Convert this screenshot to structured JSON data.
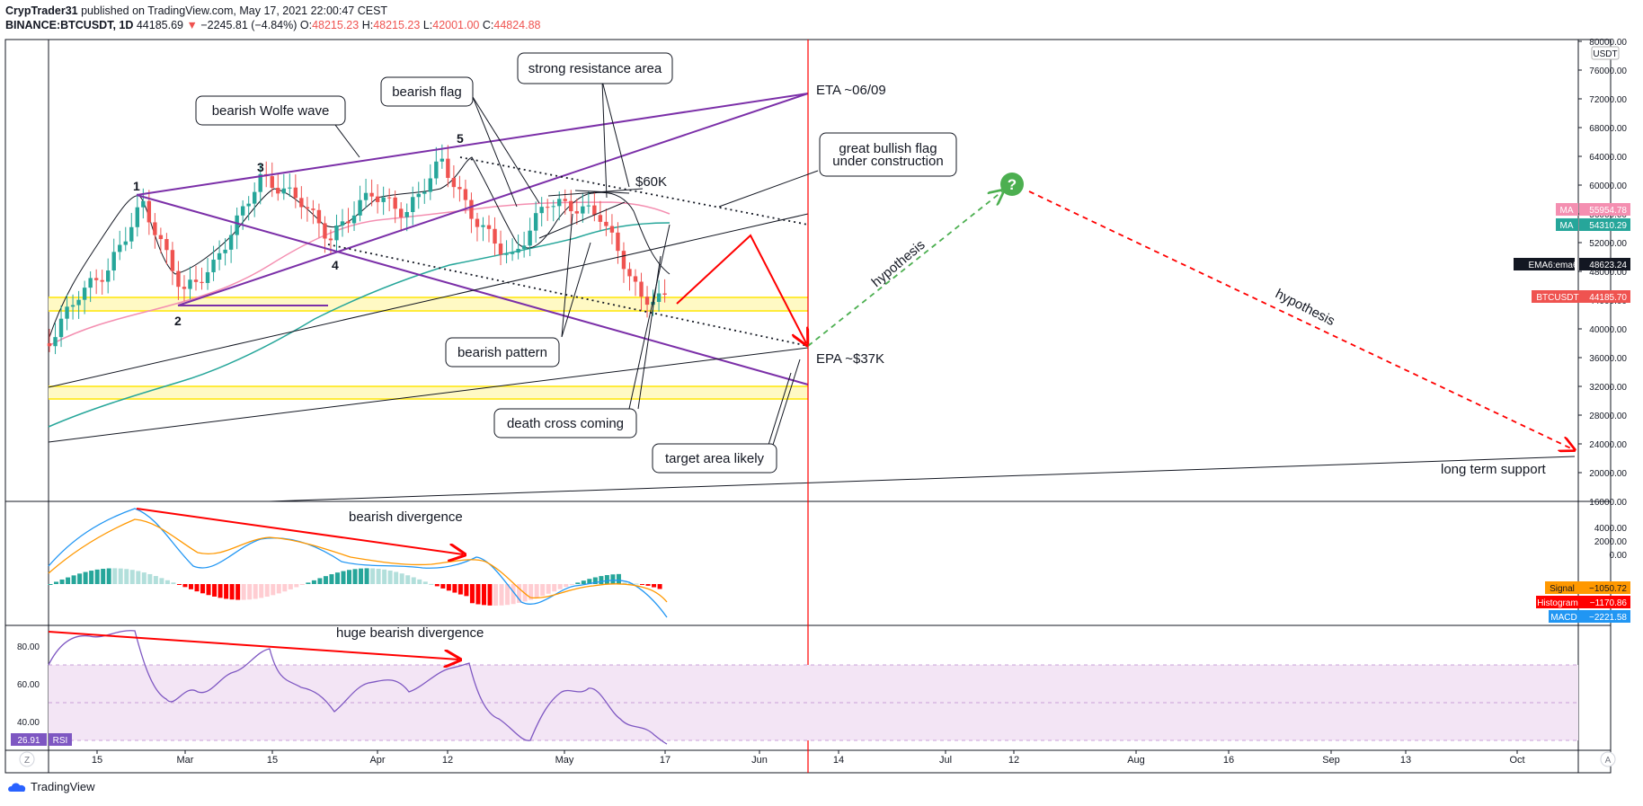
{
  "header": {
    "publisher": "CrypTrader31",
    "published_text": "published on TradingView.com, May 17, 2021 22:00:47 CEST",
    "symbol": "BINANCE:BTCUSDT, 1D",
    "price": "44185.69",
    "change": "−2245.81 (−4.84%)",
    "o_label": "O:",
    "o": "48215.23",
    "h_label": "H:",
    "h": "48215.23",
    "l_label": "L:",
    "l": "42001.00",
    "c_label": "C:",
    "c": "44824.88"
  },
  "branding": {
    "name": "TradingView"
  },
  "colors": {
    "up": "#26a69a",
    "down": "#ef5350",
    "purple": "#7b2fa8",
    "ma_pink": "#f48fb1",
    "ma_teal": "#26a69a",
    "yellow": "#fff59d",
    "rsi_line": "#7e57c2",
    "rsi_fill": "#f3e5f5",
    "macd_line": "#2196f3",
    "signal_line": "#ff9800",
    "red": "#ff0000",
    "green_dash": "#4caf50"
  },
  "chart_data": [
    {
      "type": "candlestick",
      "title": "BTCUSDT 1D",
      "price_unit": "USDT",
      "ylim": [
        16000,
        80000
      ],
      "y_ticks": [
        "80000.00",
        "76000.00",
        "72000.00",
        "68000.00",
        "64000.00",
        "60000.00",
        "56000.00",
        "52000.00",
        "48000.00",
        "44000.00",
        "40000.00",
        "36000.00",
        "32000.00",
        "28000.00",
        "24000.00",
        "20000.00",
        "16000.00"
      ],
      "x_ticks": [
        "15",
        "Mar",
        "15",
        "Apr",
        "12",
        "May",
        "17",
        "Jun",
        "14",
        "Jul",
        "12",
        "Aug",
        "16",
        "Sep",
        "13",
        "Oct"
      ],
      "approx_close_series": [
        {
          "date": "2021-02-05",
          "close": 38000
        },
        {
          "date": "2021-02-10",
          "close": 44800
        },
        {
          "date": "2021-02-15",
          "close": 48000
        },
        {
          "date": "2021-02-21",
          "close": 57500
        },
        {
          "date": "2021-02-28",
          "close": 45200
        },
        {
          "date": "2021-03-05",
          "close": 48500
        },
        {
          "date": "2021-03-13",
          "close": 61000
        },
        {
          "date": "2021-03-20",
          "close": 58000
        },
        {
          "date": "2021-03-25",
          "close": 52500
        },
        {
          "date": "2021-04-01",
          "close": 59000
        },
        {
          "date": "2021-04-07",
          "close": 56000
        },
        {
          "date": "2021-04-13",
          "close": 63500
        },
        {
          "date": "2021-04-18",
          "close": 56000
        },
        {
          "date": "2021-04-25",
          "close": 49500
        },
        {
          "date": "2021-05-01",
          "close": 57800
        },
        {
          "date": "2021-05-10",
          "close": 56000
        },
        {
          "date": "2021-05-14",
          "close": 49500
        },
        {
          "date": "2021-05-17",
          "close": 44185.69
        }
      ],
      "price_labels": [
        {
          "label": "MA",
          "value": "55954.78",
          "color": "#f48fb1"
        },
        {
          "label": "MA",
          "value": "54310.29",
          "color": "#26a69a"
        },
        {
          "label": "EMA6:ema6",
          "value": "48623.24",
          "color": "#131722"
        },
        {
          "label": "BTCUSDT",
          "value": "44185.70",
          "color": "#ef5350"
        }
      ],
      "annotations": {
        "wolfe_points": [
          "1",
          "2",
          "3",
          "4",
          "5"
        ],
        "notes": [
          "bearish Wolfe wave",
          "bearish flag",
          "strong resistance area",
          "great bullish flag\nunder construction",
          "bearish pattern",
          "death cross coming",
          "target area likely"
        ],
        "labels": [
          "$60K",
          "ETA  ~06/09",
          "EPA  ~$37K",
          "hypothesis",
          "hypothesis",
          "long term support"
        ],
        "question": "?"
      }
    },
    {
      "type": "line",
      "title": "MACD",
      "y_ticks": [
        "4000.00",
        "2000.00",
        "0.00"
      ],
      "series": [
        {
          "name": "Signal",
          "value": "−1050.72"
        },
        {
          "name": "Histogram",
          "value": "−1170.86"
        },
        {
          "name": "MACD",
          "value": "−2221.58"
        }
      ],
      "annotation": "bearish divergence"
    },
    {
      "type": "line",
      "title": "RSI",
      "value": "26.91",
      "y_ticks": [
        "80.00",
        "60.00",
        "40.00"
      ],
      "band": [
        30,
        70
      ],
      "annotation": "huge bearish divergence"
    }
  ],
  "axis_corner": {
    "left": "Z",
    "right": "A"
  }
}
